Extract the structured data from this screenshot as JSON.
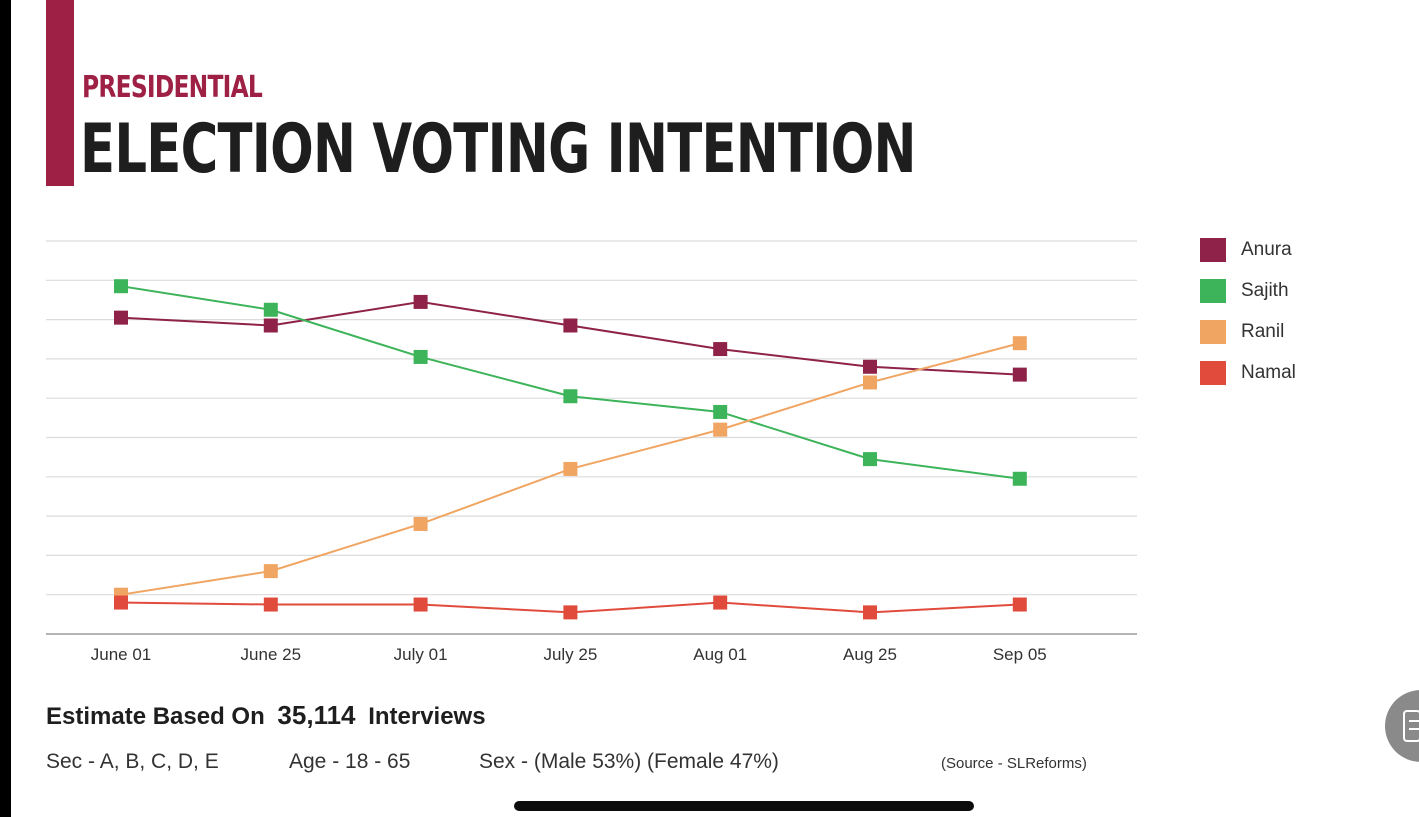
{
  "title": {
    "pre": "PRESIDENTIAL",
    "main": "ELECTION VOTING INTENTION"
  },
  "colors": {
    "accent": "#9e2145",
    "grid": "#dcdcdc",
    "axis": "#b5b5b5"
  },
  "chart_data": {
    "type": "line",
    "title": "PRESIDENTIAL ELECTION VOTING INTENTION",
    "xlabel": "",
    "ylabel": "",
    "x": [
      "June 01",
      "June 25",
      "July 01",
      "July 25",
      "Aug 01",
      "Aug 25",
      "Sep 05"
    ],
    "ylim": [
      0,
      100
    ],
    "grid": "horizontal",
    "legend_position": "right",
    "series": [
      {
        "name": "Anura",
        "color": "#8e2248",
        "values": [
          80.5,
          78.5,
          84.5,
          78.5,
          72.5,
          68,
          66
        ]
      },
      {
        "name": "Sajith",
        "color": "#3db45a",
        "values": [
          88.5,
          82.5,
          70.5,
          60.5,
          56.5,
          44.5,
          39.5
        ]
      },
      {
        "name": "Ranil",
        "color": "#f0a562",
        "values": [
          10,
          16,
          28,
          42,
          52,
          64,
          74
        ]
      },
      {
        "name": "Namal",
        "color": "#e04b3c",
        "values": [
          8,
          7.5,
          7.5,
          5.5,
          8,
          5.5,
          7.5
        ]
      }
    ]
  },
  "footer": {
    "estimate_prefix": "Estimate Based On",
    "interview_count": "35,114",
    "estimate_suffix": "Interviews",
    "sec": "Sec -  A, B, C, D, E",
    "age": "Age -  18 - 65",
    "sex": "Sex -  (Male 53%)  (Female 47%)",
    "source": "(Source - SLReforms)"
  }
}
